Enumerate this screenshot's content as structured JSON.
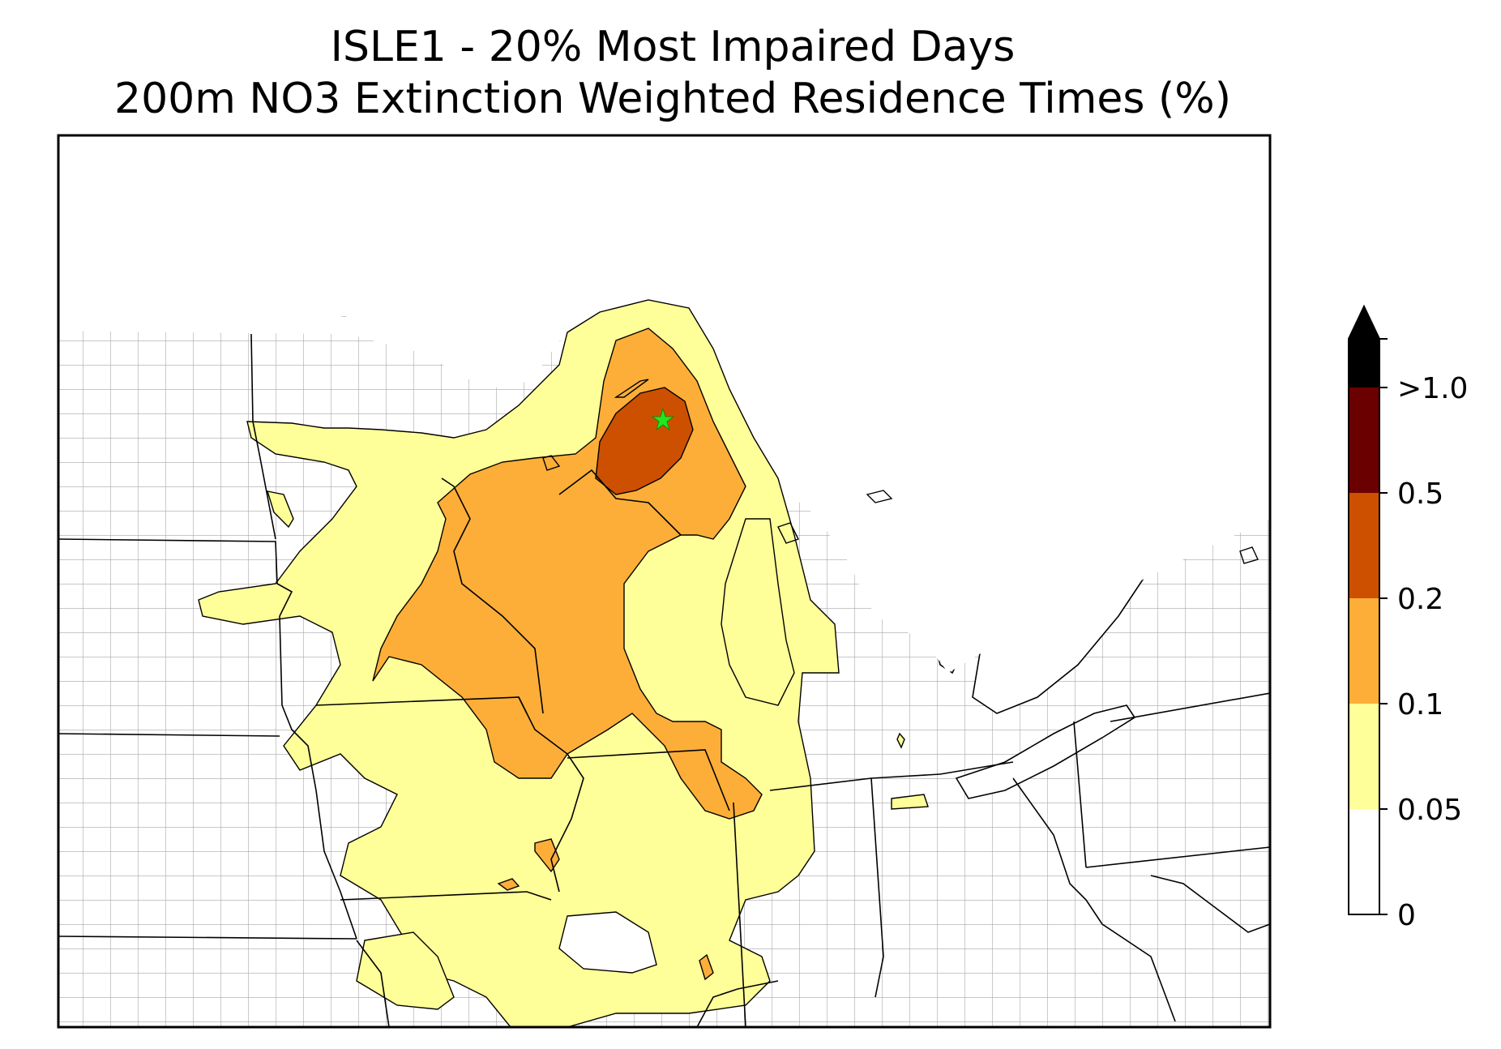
{
  "title": {
    "line1": "ISLE1 - 20% Most Impaired Days",
    "line2": "200m NO3 Extinction Weighted Residence Times (%)"
  },
  "site_marker": {
    "name": "ISLE1",
    "symbol": "star",
    "color": "#22e622"
  },
  "colorbar": {
    "extend": "max",
    "levels": [
      {
        "label": "0",
        "color": "#ffffff"
      },
      {
        "label": "0.05",
        "color": "#ffff99"
      },
      {
        "label": "0.1",
        "color": "#fdae38"
      },
      {
        "label": "0.2",
        "color": "#cc5000"
      },
      {
        "label": "0.5",
        "color": "#6b0000"
      },
      {
        "label": ">1.0",
        "color": "#000000"
      }
    ]
  },
  "map": {
    "region": "Upper Midwest / Great Lakes, USA",
    "boundaries": [
      "states",
      "counties"
    ],
    "contour_fill_colors": {
      "0.05-0.1": "#ffff99",
      "0.1-0.2": "#fdae38",
      "0.2-0.5": "#cc5000"
    },
    "state_line_color": "#000000",
    "county_line_color": "#a0a0a0"
  }
}
